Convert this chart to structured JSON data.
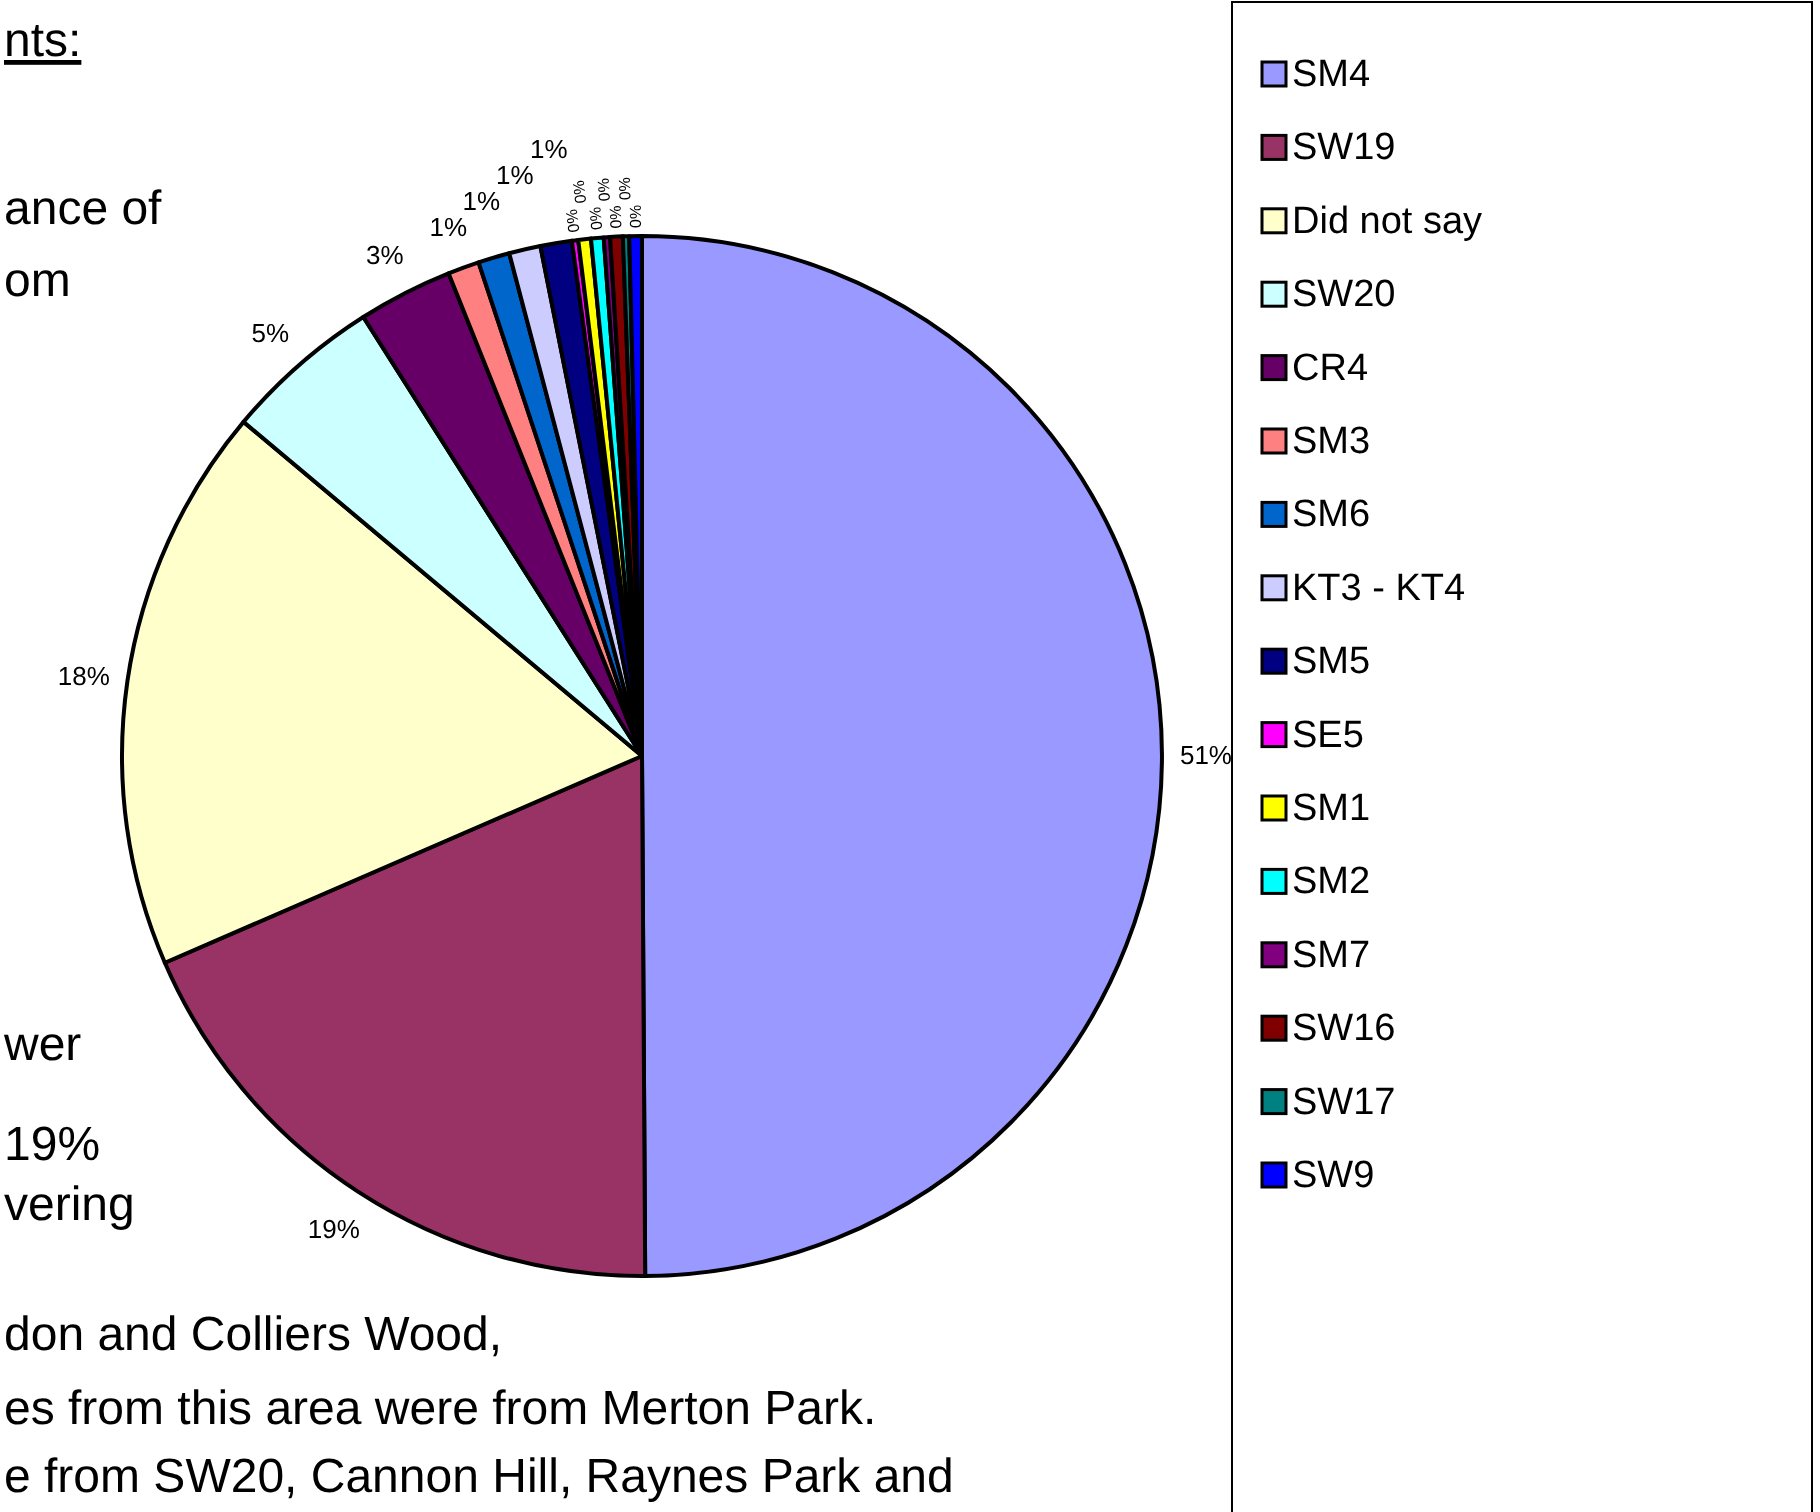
{
  "chart_data": {
    "type": "pie",
    "categories": [
      "SM4",
      "SW19",
      "Did not say",
      "SW20",
      "CR4",
      "SM3",
      "SM6",
      "KT3 - KT4",
      "SM5",
      "SE5",
      "SM1",
      "SM2",
      "SM7",
      "SW16",
      "SW17",
      "SW9"
    ],
    "values": [
      51,
      19,
      18,
      5,
      3,
      1,
      1,
      1,
      1,
      0.2,
      0.4,
      0.4,
      0.2,
      0.4,
      0.2,
      0.4
    ],
    "colors": [
      "#9999ff",
      "#993366",
      "#ffffcc",
      "#ccffff",
      "#660066",
      "#ff8080",
      "#0066cc",
      "#ccccff",
      "#000080",
      "#ff00ff",
      "#ffff00",
      "#00ffff",
      "#800080",
      "#800000",
      "#008080",
      "#0000ff"
    ],
    "value_labels": [
      "51%",
      "19%",
      "18%",
      "5%",
      "3%",
      "1%",
      "1%",
      "1%",
      "1%",
      "0%",
      "0%",
      "0%",
      "0%",
      "0%",
      "0%",
      "0%"
    ],
    "legend": "right",
    "annotations": [
      "nts:",
      "ance of",
      "om",
      "wer",
      "19%",
      "vering",
      "don and Colliers Wood,",
      "es from this area were from Merton Park.",
      "e from SW20, Cannon Hill, Raynes Park and"
    ]
  }
}
